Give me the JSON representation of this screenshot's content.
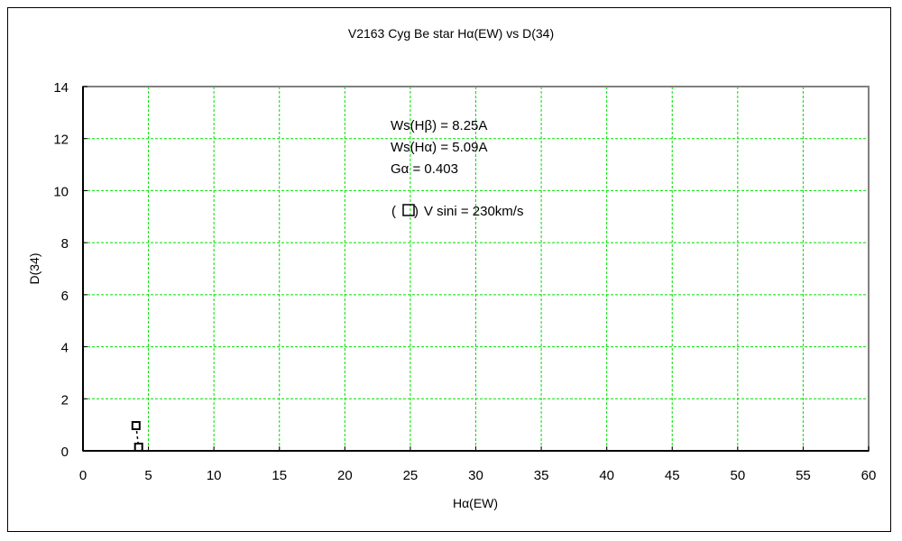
{
  "chart_data": {
    "type": "scatter",
    "title": "V2163 Cyg    Be star    Hα(EW) vs D(34)",
    "xlabel": "Hα(EW)",
    "ylabel": "D(34)",
    "xlim": [
      0,
      60
    ],
    "ylim": [
      0,
      14
    ],
    "xticks": [
      0,
      5,
      10,
      15,
      20,
      25,
      30,
      35,
      40,
      45,
      50,
      55,
      60
    ],
    "yticks": [
      0,
      2,
      4,
      6,
      8,
      10,
      12,
      14
    ],
    "grid": true,
    "grid_color": "#00dd00",
    "series": [
      {
        "marker": "open-square",
        "connected": true,
        "line_style": "dashed",
        "x": [
          4.05,
          4.25
        ],
        "y": [
          0.97,
          0.14
        ]
      }
    ],
    "annotations": [
      "Ws(Hβ) = 8.25A",
      "Ws(Hα) = 5.09A",
      "Gα = 0.403",
      "V sini = 230km/s"
    ]
  }
}
